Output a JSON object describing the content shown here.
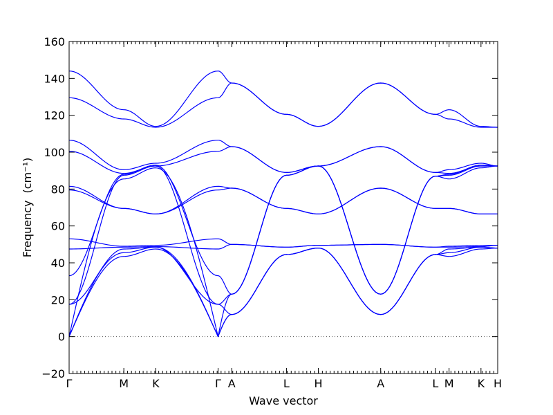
{
  "chart_data": {
    "type": "line",
    "title": "",
    "xlabel": "Wave vector",
    "ylabel": "Frequency",
    "ylabel_unit": "(cm⁻¹)",
    "ylim": [
      -20,
      160
    ],
    "yticks": [
      -20,
      0,
      20,
      40,
      60,
      80,
      100,
      120,
      140,
      160
    ],
    "grid": false,
    "legend": "none",
    "color": "#0000ff",
    "reference_line": {
      "y": 0,
      "style": "dotted"
    },
    "xlim": [
      0,
      14.1
    ],
    "xticks": [
      {
        "label": "Γ",
        "x": 0
      },
      {
        "label": "M",
        "x": 1.8
      },
      {
        "label": "K",
        "x": 2.85
      },
      {
        "label": "Γ",
        "x": 4.9
      },
      {
        "label": "A",
        "x": 5.35
      },
      {
        "label": "L",
        "x": 7.15
      },
      {
        "label": "H",
        "x": 8.2
      },
      {
        "label": "A",
        "x": 10.25
      },
      {
        "label": "L",
        "x": 12.05
      },
      {
        "label": "M",
        "x": 12.5
      },
      {
        "label": "K",
        "x": 13.55
      },
      {
        "label": "H",
        "x": 14.1
      }
    ],
    "series": [
      {
        "x": [
          0,
          1.8,
          2.85,
          4.9,
          5.35,
          7.15,
          8.2,
          10.25,
          12.05,
          12.5,
          13.55,
          14.1
        ],
        "y": [
          0,
          43.5,
          47.5,
          0,
          12,
          44.5,
          48,
          12,
          44.5,
          43.5,
          47.5,
          48
        ]
      },
      {
        "x": [
          0,
          1.8,
          2.85,
          4.9,
          5.35,
          7.15,
          8.2,
          10.25,
          12.05,
          12.5,
          13.55,
          14.1
        ],
        "y": [
          0,
          45.5,
          48.5,
          0,
          12,
          44.5,
          48,
          12,
          44.5,
          45.5,
          48.5,
          48
        ]
      },
      {
        "x": [
          0,
          1.8,
          2.85,
          4.9,
          5.35,
          7.15,
          8.2,
          10.25,
          12.05,
          12.5,
          13.55,
          14.1
        ],
        "y": [
          17.5,
          47.5,
          48.5,
          17.5,
          12,
          44.5,
          48,
          12,
          44.5,
          47.5,
          48.5,
          48
        ]
      },
      {
        "x": [
          0,
          1.8,
          2.85,
          4.9,
          5.35,
          7.15,
          8.2,
          10.25,
          12.05,
          12.5,
          13.55,
          14.1
        ],
        "y": [
          47.5,
          48.5,
          48.8,
          47.5,
          50,
          48.5,
          49.5,
          50,
          48.5,
          48.5,
          48.8,
          49.5
        ]
      },
      {
        "x": [
          0,
          1.8,
          2.85,
          4.9,
          5.35,
          7.15,
          8.2,
          10.25,
          12.05,
          12.5,
          13.55,
          14.1
        ],
        "y": [
          53,
          49,
          49.5,
          53,
          50,
          48.5,
          49.5,
          50,
          48.5,
          49,
          49.5,
          49.5
        ]
      },
      {
        "x": [
          0,
          1.8,
          2.85,
          4.9,
          5.35,
          7.15,
          8.2,
          10.25,
          12.05,
          12.5,
          13.55,
          14.1
        ],
        "y": [
          0,
          85.5,
          91.5,
          0,
          23,
          87.5,
          92.5,
          23,
          87,
          85.5,
          91.5,
          92.5
        ]
      },
      {
        "x": [
          0,
          1.8,
          2.85,
          4.9,
          5.35,
          7.15,
          8.2,
          10.25,
          12.05,
          12.5,
          13.55,
          14.1
        ],
        "y": [
          17.5,
          87.5,
          92.5,
          17.5,
          23,
          87.5,
          92.5,
          23,
          87,
          87.5,
          92.5,
          92.5
        ]
      },
      {
        "x": [
          0,
          1.8,
          2.85,
          4.9,
          5.35,
          7.15,
          8.2,
          10.25,
          12.05,
          12.5,
          13.55,
          14.1
        ],
        "y": [
          33,
          88,
          93,
          33,
          23,
          87.5,
          92.5,
          23,
          87,
          88,
          93,
          92.5
        ]
      },
      {
        "x": [
          0,
          1.8,
          2.85,
          4.9,
          5.35,
          7.15,
          8.2,
          10.25,
          12.05,
          12.5,
          13.55,
          14.1
        ],
        "y": [
          79.5,
          69.5,
          66.5,
          79.5,
          80.5,
          69.5,
          66.5,
          80.5,
          69.5,
          69.5,
          66.5,
          66.5
        ]
      },
      {
        "x": [
          0,
          1.8,
          2.85,
          4.9,
          5.35,
          7.15,
          8.2,
          10.25,
          12.05,
          12.5,
          13.55,
          14.1
        ],
        "y": [
          81.5,
          69.5,
          66.5,
          81.5,
          80.5,
          69.5,
          66.5,
          80.5,
          69.5,
          69.5,
          66.5,
          66.5
        ]
      },
      {
        "x": [
          0,
          1.8,
          2.85,
          4.9,
          5.35,
          7.15,
          8.2,
          10.25,
          12.05,
          12.5,
          13.55,
          14.1
        ],
        "y": [
          100.5,
          88.5,
          92.5,
          100.5,
          103,
          89,
          92.5,
          103,
          89,
          88.5,
          92.5,
          92.5
        ]
      },
      {
        "x": [
          0,
          1.8,
          2.85,
          4.9,
          5.35,
          7.15,
          8.2,
          10.25,
          12.05,
          12.5,
          13.55,
          14.1
        ],
        "y": [
          106.5,
          90.5,
          94,
          106.5,
          103,
          89,
          92.5,
          103,
          89,
          90.5,
          94,
          92.5
        ]
      },
      {
        "x": [
          0,
          1.8,
          2.85,
          4.9,
          5.35,
          7.15,
          8.2,
          10.25,
          12.05,
          12.5,
          13.55,
          14.1
        ],
        "y": [
          129.5,
          118,
          113.5,
          129.5,
          137.5,
          120.5,
          114,
          137.5,
          120.5,
          118,
          113.5,
          113.5
        ]
      },
      {
        "x": [
          0,
          1.8,
          2.85,
          4.9,
          5.35,
          7.15,
          8.2,
          10.25,
          12.05,
          12.5,
          13.55,
          14.1
        ],
        "y": [
          144,
          123,
          114,
          144,
          137.5,
          120.5,
          114,
          137.5,
          120.5,
          123,
          114,
          113.5
        ]
      }
    ]
  }
}
